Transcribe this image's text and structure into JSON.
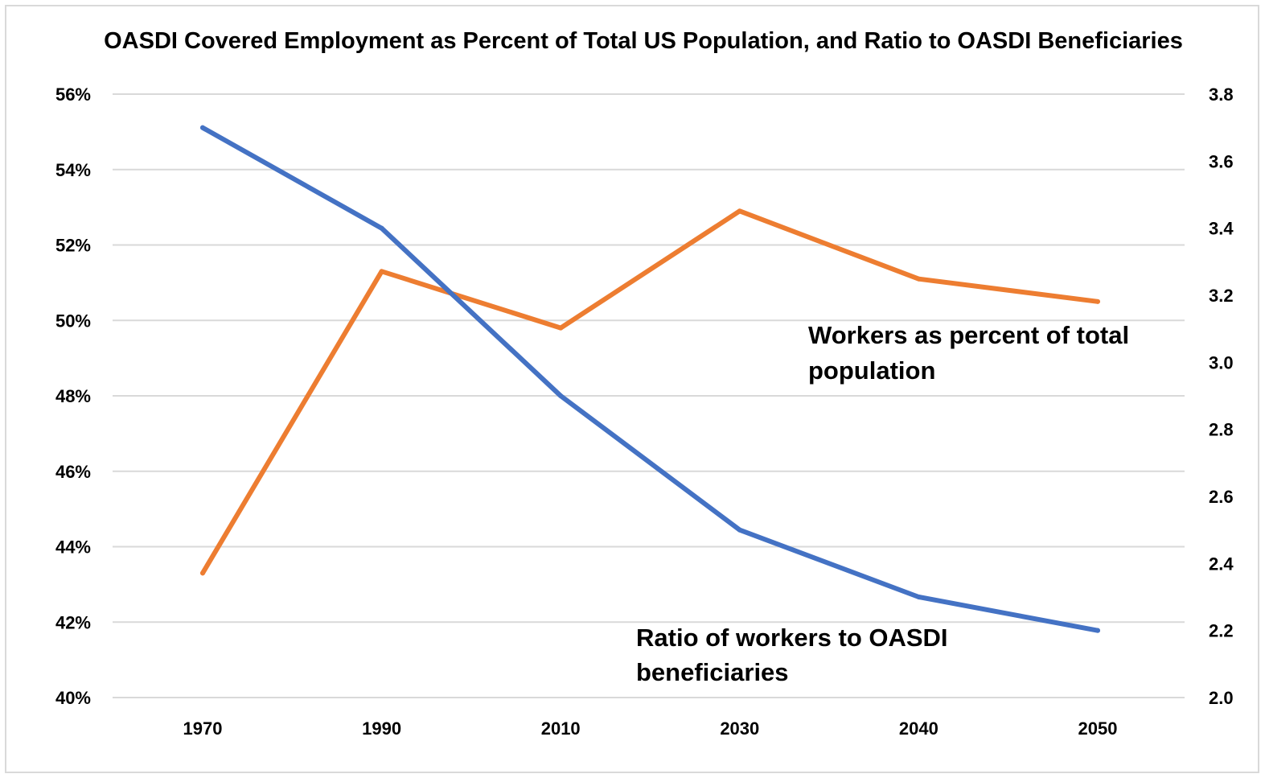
{
  "chart_data": {
    "type": "line",
    "title": "OASDI Covered Employment as Percent of Total US Population, and Ratio to OASDI Beneficiaries",
    "categories": [
      "1970",
      "1990",
      "2010",
      "2030",
      "2040",
      "2050"
    ],
    "y_left": {
      "min": 40,
      "max": 56,
      "ticks": [
        "40%",
        "42%",
        "44%",
        "46%",
        "48%",
        "50%",
        "52%",
        "54%",
        "56%"
      ]
    },
    "y_right": {
      "min": 2.0,
      "max": 3.8,
      "ticks": [
        "2.0",
        "2.2",
        "2.4",
        "2.6",
        "2.8",
        "3.0",
        "3.2",
        "3.4",
        "3.6",
        "3.8"
      ]
    },
    "grid": true,
    "series": [
      {
        "name": "Workers as percent of total population",
        "axis": "left",
        "color": "#ed7d31",
        "values": [
          43.3,
          51.3,
          49.8,
          52.9,
          51.1,
          50.5
        ]
      },
      {
        "name": "Ratio of workers to OASDI beneficiaries",
        "axis": "right",
        "color": "#4472c4",
        "values": [
          3.7,
          3.4,
          2.9,
          2.5,
          2.3,
          2.2
        ]
      }
    ],
    "annotations": [
      {
        "series": "Workers as percent of total population",
        "lines": [
          "Workers as percent of total",
          "population"
        ]
      },
      {
        "series": "Ratio of workers to OASDI beneficiaries",
        "lines": [
          "Ratio of workers to OASDI",
          "beneficiaries"
        ]
      }
    ]
  }
}
